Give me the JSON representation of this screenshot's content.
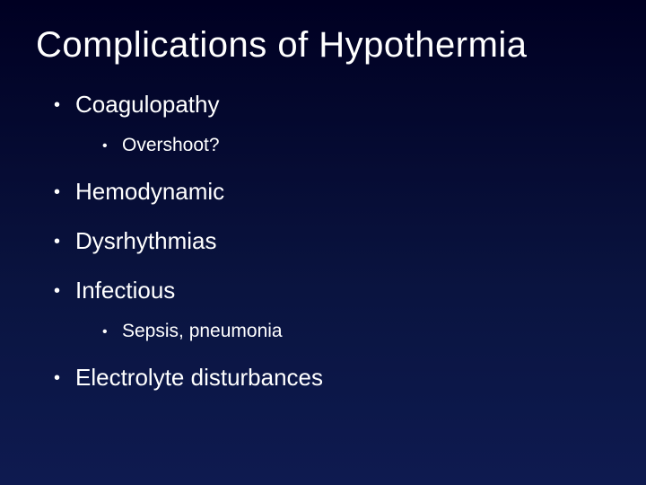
{
  "slide": {
    "title": "Complications of Hypothermia",
    "background_gradient_top": "#000022",
    "background_gradient_bottom": "#0e1a50",
    "text_color": "#ffffff",
    "title_fontsize": 40,
    "level1_fontsize": 26,
    "level2_fontsize": 21,
    "font_family": "Arial",
    "bullets": [
      {
        "text": "Coagulopathy",
        "children": [
          {
            "text": "Overshoot?"
          }
        ]
      },
      {
        "text": "Hemodynamic",
        "children": []
      },
      {
        "text": "Dysrhythmias",
        "children": []
      },
      {
        "text": "Infectious",
        "children": [
          {
            "text": "Sepsis, pneumonia"
          }
        ]
      },
      {
        "text": "Electrolyte disturbances",
        "children": []
      }
    ]
  }
}
